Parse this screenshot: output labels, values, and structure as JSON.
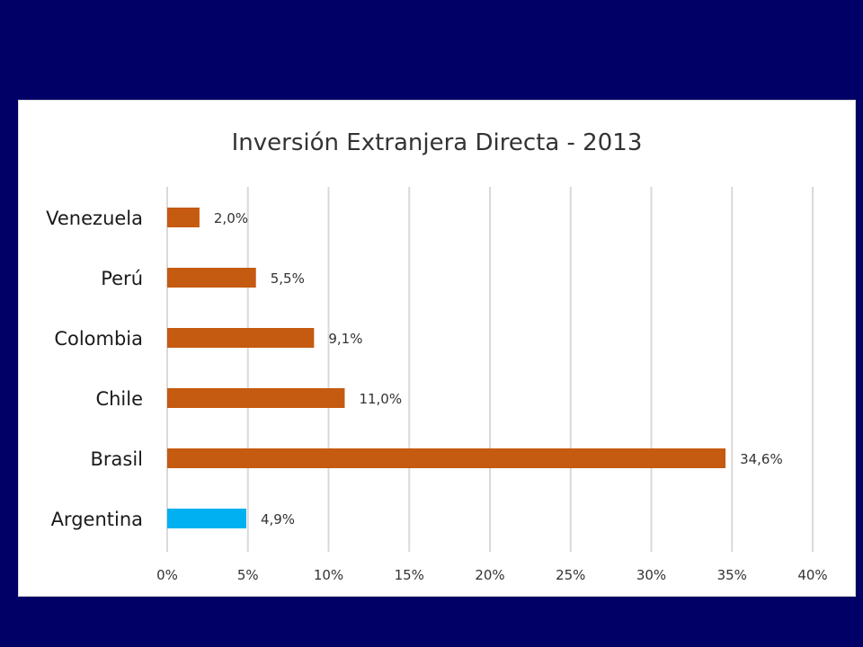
{
  "chart_data": {
    "type": "bar",
    "orientation": "horizontal",
    "title": "Inversión Extranjera Directa - 2013",
    "categories": [
      "Venezuela",
      "Perú",
      "Colombia",
      "Chile",
      "Brasil",
      "Argentina"
    ],
    "values": [
      2.0,
      5.5,
      9.1,
      11.0,
      34.6,
      4.9
    ],
    "data_labels": [
      "2,0%",
      "5,5%",
      "9,1%",
      "11,0%",
      "34,6%",
      "4,9%"
    ],
    "bar_colors": [
      "#c55a11",
      "#c55a11",
      "#c55a11",
      "#c55a11",
      "#c55a11",
      "#00b0f0"
    ],
    "xlim": [
      0,
      40
    ],
    "x_ticks": [
      0,
      5,
      10,
      15,
      20,
      25,
      30,
      35,
      40
    ],
    "x_tick_labels": [
      "0%",
      "5%",
      "10%",
      "15%",
      "20%",
      "25%",
      "30%",
      "35%",
      "40%"
    ],
    "xlabel": "",
    "ylabel": "",
    "grid": true,
    "legend": "none"
  },
  "colors": {
    "background": "#000066",
    "panel": "#ffffff",
    "bar_default": "#c55a11",
    "bar_highlight": "#00b0f0",
    "grid": "#d9d9d9"
  }
}
